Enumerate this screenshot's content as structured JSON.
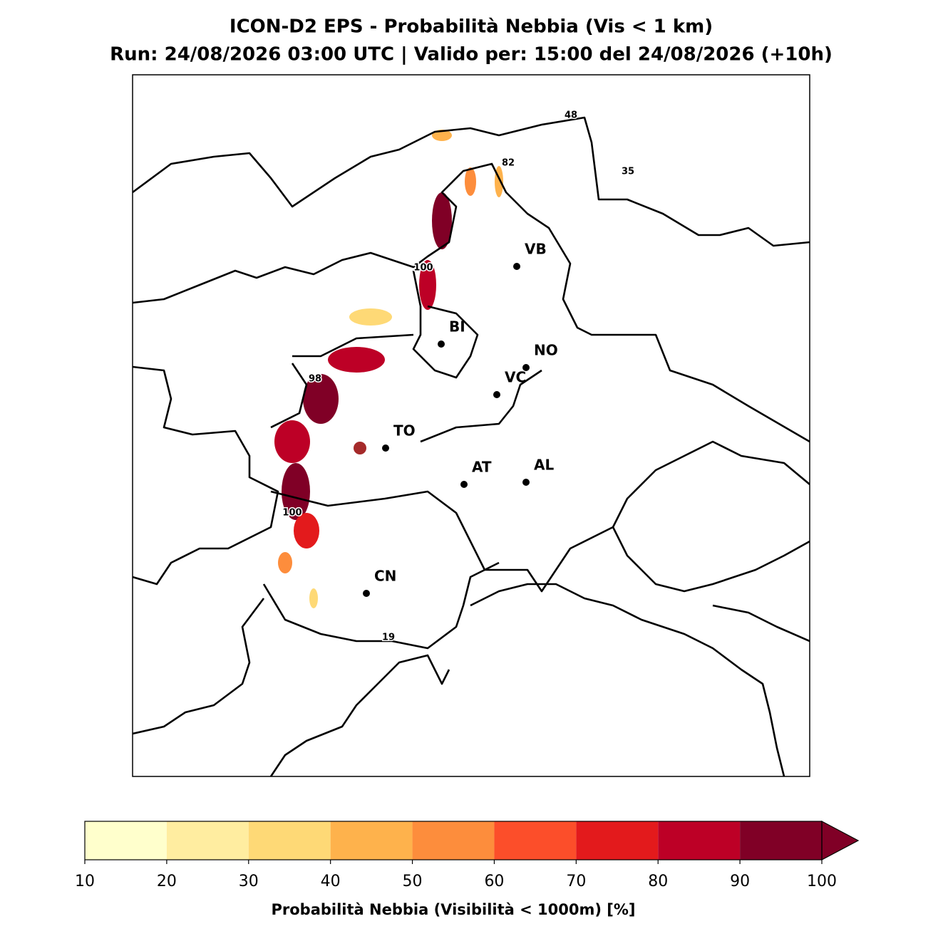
{
  "title": "ICON-D2 EPS - Probabilità Nebbia (Vis < 1 km)",
  "subtitle": "Run: 24/08/2026 03:00 UTC | Valido per: 15:00 del 24/08/2026 (+10h)",
  "map": {
    "cities": [
      "VB",
      "BI",
      "NO",
      "VC",
      "TO",
      "AT",
      "AL",
      "CN"
    ],
    "contour_labels": [
      48,
      82,
      35,
      100,
      98,
      100,
      19
    ]
  },
  "colorbar": {
    "label": "Probabilità Nebbia (Visibilità < 1000m) [%]",
    "ticks": [
      10,
      20,
      30,
      40,
      50,
      60,
      70,
      80,
      90,
      100
    ],
    "colors": [
      "#ffffcc",
      "#ffeda0",
      "#fed976",
      "#feb24c",
      "#fd8d3c",
      "#fc4e2a",
      "#e31a1c",
      "#bd0026",
      "#800026"
    ],
    "extend": "max"
  }
}
